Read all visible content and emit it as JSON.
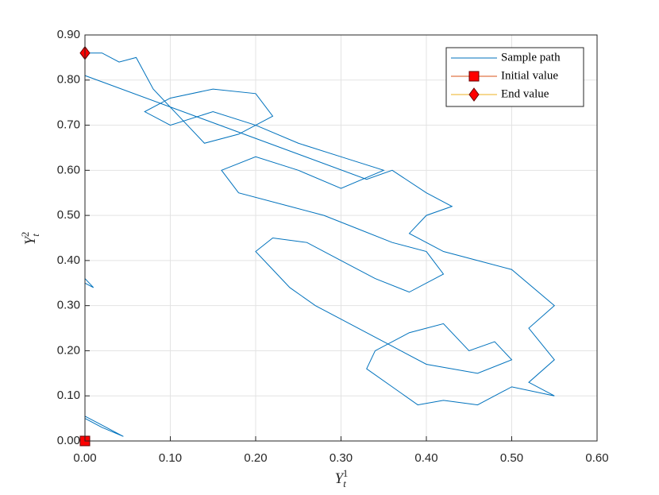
{
  "chart_data": {
    "type": "line",
    "xlabel": {
      "base": "Y",
      "sub": "t",
      "sup": "1"
    },
    "ylabel": {
      "base": "Y",
      "sub": "t",
      "sup": "2"
    },
    "xlim": [
      0,
      0.6
    ],
    "ylim": [
      0,
      0.9
    ],
    "xticks": [
      {
        "value": 0,
        "label": "0.00"
      },
      {
        "value": 0.1,
        "label": "0.10"
      },
      {
        "value": 0.2,
        "label": "0.20"
      },
      {
        "value": 0.3,
        "label": "0.30"
      },
      {
        "value": 0.4,
        "label": "0.40"
      },
      {
        "value": 0.5,
        "label": "0.50"
      },
      {
        "value": 0.6,
        "label": "0.60"
      }
    ],
    "yticks": [
      {
        "value": 0,
        "label": "0.00"
      },
      {
        "value": 0.1,
        "label": "0.10"
      },
      {
        "value": 0.2,
        "label": "0.20"
      },
      {
        "value": 0.3,
        "label": "0.30"
      },
      {
        "value": 0.4,
        "label": "0.40"
      },
      {
        "value": 0.5,
        "label": "0.50"
      },
      {
        "value": 0.6,
        "label": "0.60"
      },
      {
        "value": 0.7,
        "label": "0.70"
      },
      {
        "value": 0.8,
        "label": "0.80"
      },
      {
        "value": 0.9,
        "label": "0.90"
      }
    ],
    "grid": true,
    "legend": "upper right",
    "series": [
      {
        "name": "Sample path",
        "color": "#0072bd",
        "x": [
          0,
          0,
          0.045,
          0.02,
          0,
          0,
          0.01,
          0,
          0,
          0.33,
          0.36,
          0.4,
          0.43,
          0.4,
          0.38,
          0.42,
          0.46,
          0.5,
          0.55,
          0.52,
          0.55,
          0.52,
          0.55,
          0.5,
          0.46,
          0.42,
          0.39,
          0.36,
          0.33,
          0.34,
          0.38,
          0.42,
          0.45,
          0.48,
          0.5,
          0.46,
          0.4,
          0.35,
          0.3,
          0.27,
          0.24,
          0.22,
          0.2,
          0.22,
          0.26,
          0.3,
          0.34,
          0.38,
          0.42,
          0.4,
          0.36,
          0.32,
          0.28,
          0.24,
          0.18,
          0.16,
          0.2,
          0.25,
          0.3,
          0.35,
          0.3,
          0.25,
          0.2,
          0.15,
          0.1,
          0.07,
          0.1,
          0.15,
          0.2,
          0.22,
          0.18,
          0.14,
          0.12,
          0.08,
          0.06,
          0.04,
          0.02,
          0
        ],
        "y": [
          0,
          0.055,
          0.01,
          0.03,
          0.05,
          0.35,
          0.34,
          0.36,
          0.81,
          0.58,
          0.6,
          0.55,
          0.52,
          0.5,
          0.46,
          0.42,
          0.4,
          0.38,
          0.3,
          0.25,
          0.18,
          0.13,
          0.1,
          0.12,
          0.08,
          0.09,
          0.08,
          0.12,
          0.16,
          0.2,
          0.24,
          0.26,
          0.2,
          0.22,
          0.18,
          0.15,
          0.17,
          0.22,
          0.27,
          0.3,
          0.34,
          0.38,
          0.42,
          0.45,
          0.44,
          0.4,
          0.36,
          0.33,
          0.37,
          0.42,
          0.44,
          0.47,
          0.5,
          0.52,
          0.55,
          0.6,
          0.63,
          0.6,
          0.56,
          0.6,
          0.63,
          0.66,
          0.7,
          0.73,
          0.7,
          0.73,
          0.76,
          0.78,
          0.77,
          0.72,
          0.68,
          0.66,
          0.7,
          0.78,
          0.85,
          0.84,
          0.86,
          0.86
        ]
      },
      {
        "name": "Initial value",
        "color": "#d95319",
        "marker": "square",
        "marker_color": "#ff0000",
        "x": [
          0
        ],
        "y": [
          0
        ]
      },
      {
        "name": "End value",
        "color": "#edb120",
        "marker": "diamond",
        "marker_color": "#ff0000",
        "x": [
          0
        ],
        "y": [
          0.86
        ]
      }
    ]
  }
}
